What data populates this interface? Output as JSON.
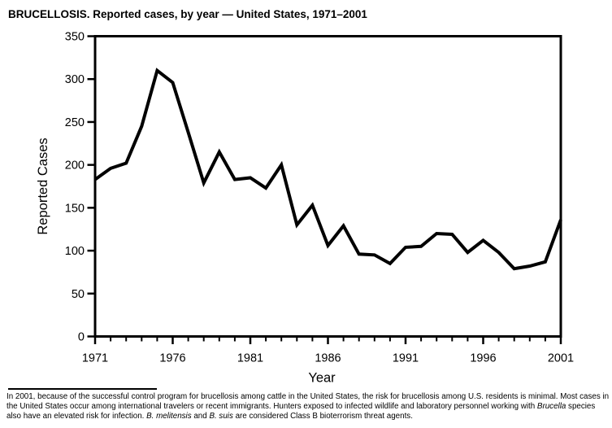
{
  "title": "BRUCELLOSIS. Reported cases, by year — United States, 1971–2001",
  "colors": {
    "ink": "#000000",
    "background": "#ffffff"
  },
  "chart_data": {
    "type": "line",
    "title": "BRUCELLOSIS. Reported cases, by year — United States, 1971–2001",
    "xlabel": "Year",
    "ylabel": "Reported Cases",
    "x": [
      1971,
      1972,
      1973,
      1974,
      1975,
      1976,
      1977,
      1978,
      1979,
      1980,
      1981,
      1982,
      1983,
      1984,
      1985,
      1986,
      1987,
      1988,
      1989,
      1990,
      1991,
      1992,
      1993,
      1994,
      1995,
      1996,
      1997,
      1998,
      1999,
      2000,
      2001
    ],
    "values": [
      183,
      196,
      202,
      245,
      310,
      296,
      238,
      179,
      215,
      183,
      185,
      173,
      200,
      130,
      153,
      106,
      129,
      96,
      95,
      85,
      104,
      105,
      120,
      119,
      98,
      112,
      98,
      79,
      82,
      87,
      136
    ],
    "ylim": [
      0,
      350
    ],
    "ytick_step": 50,
    "ytick_labels": [
      "0",
      "50",
      "100",
      "150",
      "200",
      "250",
      "300",
      "350"
    ],
    "xtick_label_step": 5,
    "xtick_labels": [
      "1971",
      "1976",
      "1981",
      "1986",
      "1991",
      "1996",
      "2001"
    ],
    "grid": false,
    "legend": "none",
    "line_color": "#000000"
  },
  "footnote": {
    "segments": [
      {
        "italic": false,
        "text": "In 2001, because of the successful control program for brucellosis among cattle in the United States, the risk for brucellosis among U.S. residents is minimal. Most cases in the United States occur among international travelers or recent immigrants. Hunters exposed to infected wildlife and laboratory personnel working with "
      },
      {
        "italic": true,
        "text": "Brucella"
      },
      {
        "italic": false,
        "text": " species also have an elevated risk for infection. "
      },
      {
        "italic": true,
        "text": "B. melitensis"
      },
      {
        "italic": false,
        "text": " and "
      },
      {
        "italic": true,
        "text": "B. suis"
      },
      {
        "italic": false,
        "text": " are considered Class B bioterrorism threat agents."
      }
    ]
  }
}
